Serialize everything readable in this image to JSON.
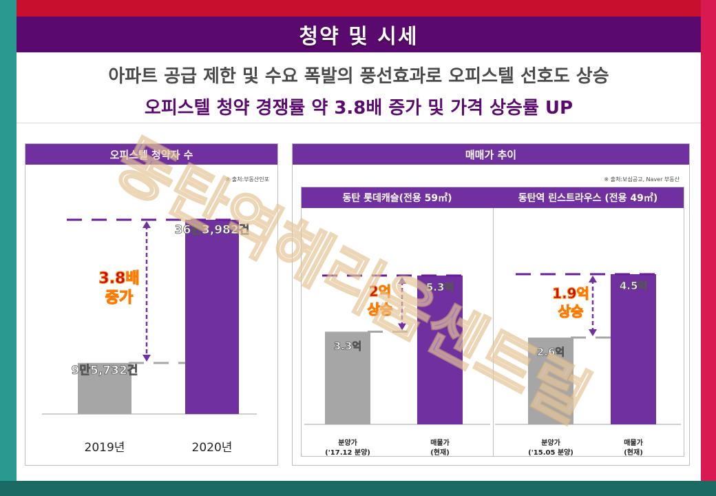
{
  "header": {
    "title": "청약 및 시세",
    "line1": "아파트 공급 제한 및 수요 폭발의 풍선효과로 오피스텔 선호도 상승",
    "line2": "오피스텔 청약 경쟁률 약 3.8배 증가 및 가격 상승률 UP"
  },
  "colors": {
    "banner": "#5a0a6e",
    "accent": "#7030a0",
    "gray_bar": "#a6a6a6",
    "annotation_orange": "#ff7a00",
    "frame_red": "#c8102e",
    "frame_teal": "#2a9a90"
  },
  "left_panel": {
    "title": "오피스텔 청약자 수",
    "source": "※ 출처:부동산인포"
  },
  "right_panel": {
    "title": "매매가 추이",
    "source": "※ 출처:보심공고, Naver 부동산",
    "sub1": "동탄 롯데캐슬(전용 59㎡)",
    "sub2": "동탄역 린스트라우스 (전용 49㎡)"
  },
  "watermark": "동탄역헤리움센트럴",
  "chart_data": [
    {
      "type": "bar",
      "title": "오피스텔 청약자 수",
      "categories": [
        "2019년",
        "2020년"
      ],
      "values": [
        95732,
        363982
      ],
      "data_labels": [
        "9만5,732건",
        "36만3,982건"
      ],
      "annotation": [
        "3.8배",
        "증가"
      ],
      "grid": false
    },
    {
      "type": "bar",
      "title": "동탄 롯데캐슬(전용 59㎡)",
      "categories": [
        "분양가|('17.12 분양)",
        "매물가|(현재)"
      ],
      "values": [
        3.3,
        5.3
      ],
      "data_labels": [
        "3.3억",
        "5.3억"
      ],
      "annotation": [
        "2억",
        "상승"
      ],
      "grid": false
    },
    {
      "type": "bar",
      "title": "동탄역 린스트라우스 (전용 49㎡)",
      "categories": [
        "분양가|('15.05 분양)",
        "매물가|(현재)"
      ],
      "values": [
        2.6,
        4.5
      ],
      "data_labels": [
        "2.6억",
        "4.5억"
      ],
      "annotation": [
        "1.9억",
        "상승"
      ],
      "grid": false
    }
  ]
}
